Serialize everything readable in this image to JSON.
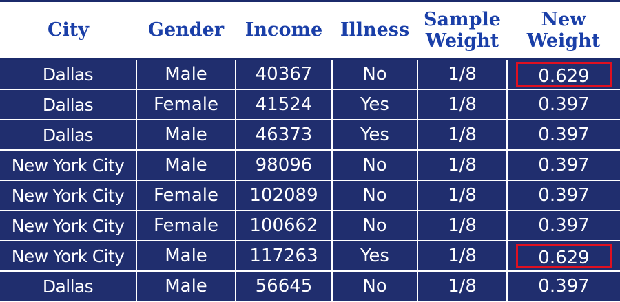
{
  "table": {
    "headers": [
      {
        "line1": "City",
        "line2": ""
      },
      {
        "line1": "Gender",
        "line2": ""
      },
      {
        "line1": "Income",
        "line2": ""
      },
      {
        "line1": "Illness",
        "line2": ""
      },
      {
        "line1": "Sample",
        "line2": "Weight"
      },
      {
        "line1": "New",
        "line2": "Weight"
      }
    ],
    "rows": [
      {
        "city": "Dallas",
        "gender": "Male",
        "income": "40367",
        "illness": "No",
        "sample_weight": "1/8",
        "new_weight": "0.629",
        "highlighted": true
      },
      {
        "city": "Dallas",
        "gender": "Female",
        "income": "41524",
        "illness": "Yes",
        "sample_weight": "1/8",
        "new_weight": "0.397",
        "highlighted": false
      },
      {
        "city": "Dallas",
        "gender": "Male",
        "income": "46373",
        "illness": "Yes",
        "sample_weight": "1/8",
        "new_weight": "0.397",
        "highlighted": false
      },
      {
        "city": "New York City",
        "gender": "Male",
        "income": "98096",
        "illness": "No",
        "sample_weight": "1/8",
        "new_weight": "0.397",
        "highlighted": false
      },
      {
        "city": "New York City",
        "gender": "Female",
        "income": "102089",
        "illness": "No",
        "sample_weight": "1/8",
        "new_weight": "0.397",
        "highlighted": false
      },
      {
        "city": "New York City",
        "gender": "Female",
        "income": "100662",
        "illness": "No",
        "sample_weight": "1/8",
        "new_weight": "0.397",
        "highlighted": false
      },
      {
        "city": "New York City",
        "gender": "Male",
        "income": "117263",
        "illness": "Yes",
        "sample_weight": "1/8",
        "new_weight": "0.629",
        "highlighted": true
      },
      {
        "city": "Dallas",
        "gender": "Male",
        "income": "56645",
        "illness": "No",
        "sample_weight": "1/8",
        "new_weight": "0.397",
        "highlighted": false
      }
    ]
  },
  "colors": {
    "header_text": "#1a3fa8",
    "row_background": "#202e6e",
    "cell_text": "#ffffff",
    "highlight_border": "#e01020"
  }
}
